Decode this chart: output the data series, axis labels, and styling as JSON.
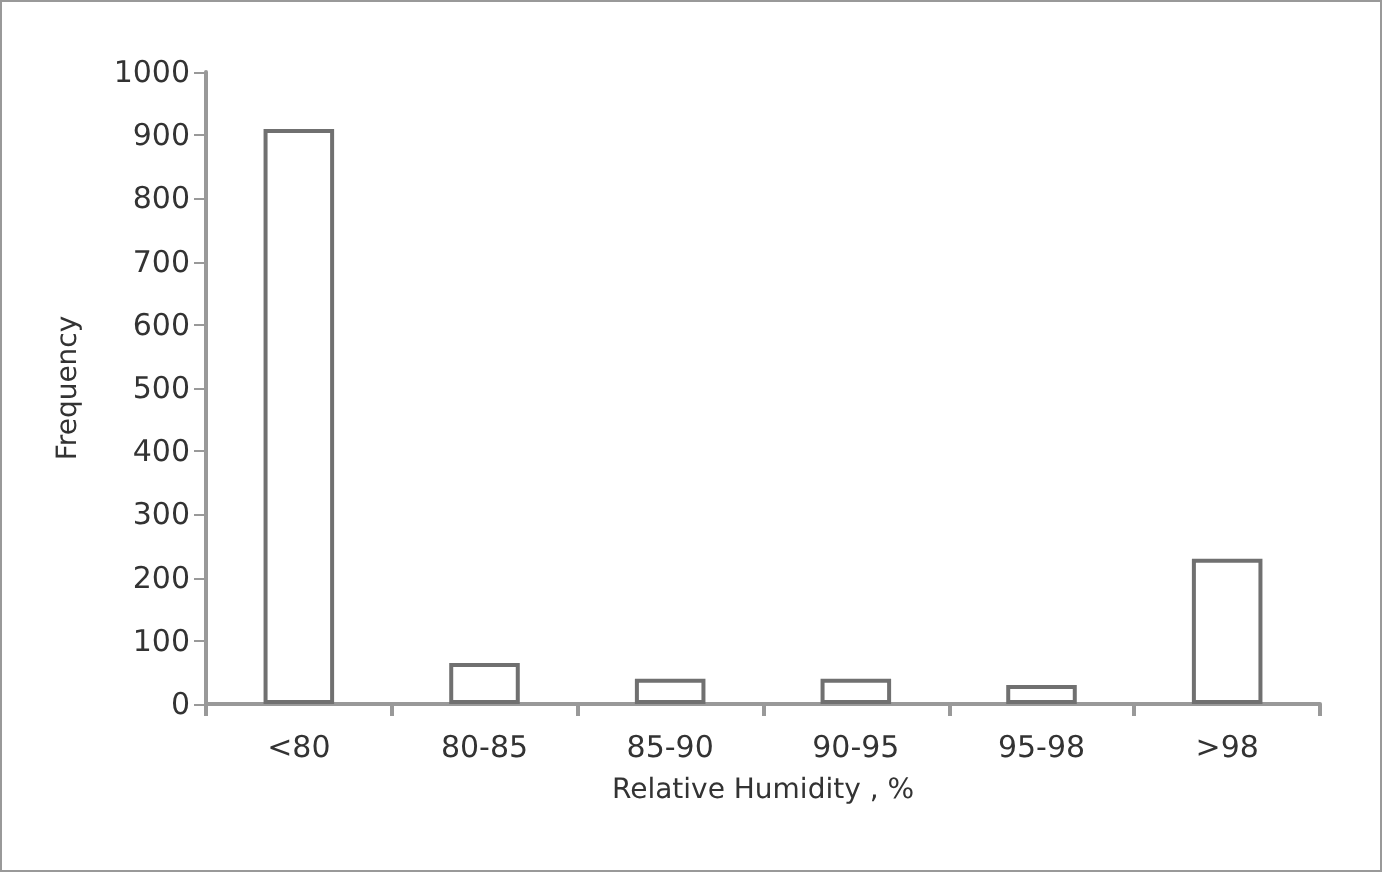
{
  "chart_data": {
    "type": "bar",
    "xlabel": "Relative Humidity , %",
    "ylabel": "Frequency",
    "categories": [
      "<80",
      "80-85",
      "85-90",
      "90-95",
      "95-98",
      ">98"
    ],
    "values": [
      910,
      65,
      40,
      40,
      30,
      230
    ],
    "color": "#ffffff",
    "ylim": [
      0,
      1000
    ],
    "yticks": [
      0,
      100,
      200,
      300,
      400,
      500,
      600,
      700,
      800,
      900,
      1000
    ],
    "grid": false
  }
}
